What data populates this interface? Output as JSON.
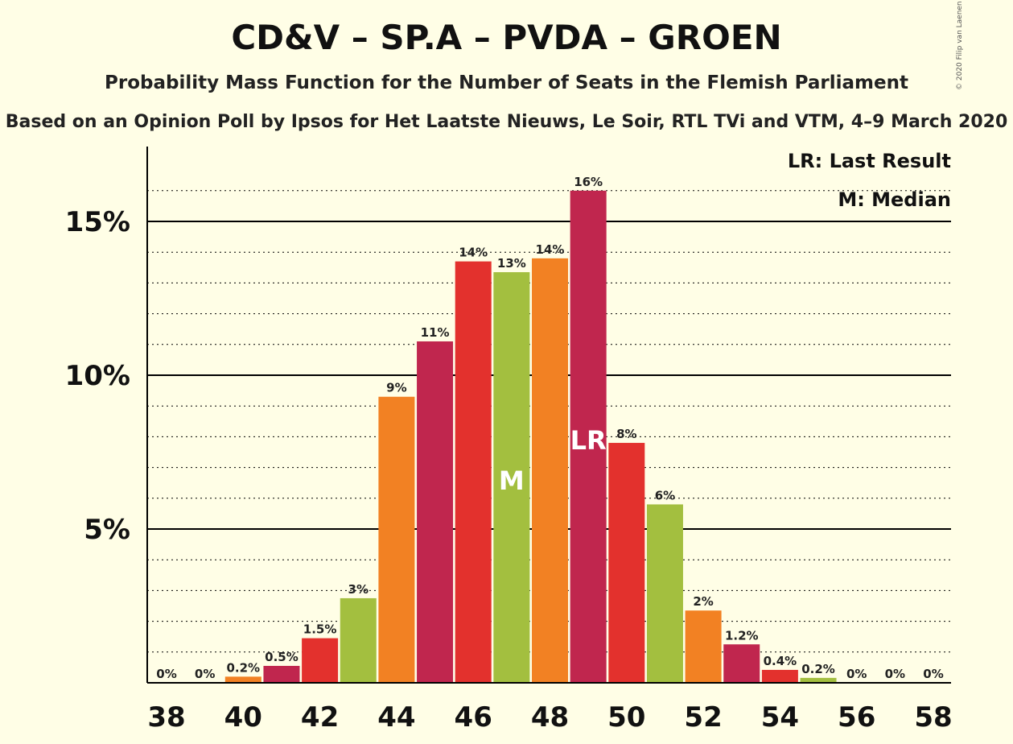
{
  "title": "CD&V – SP.A – PVDA – GROEN",
  "subtitle": "Probability Mass Function for the Number of Seats in the Flemish Parliament",
  "subtitle2": "Based on an Opinion Poll by Ipsos for Het Laatste Nieuws, Le Soir, RTL TVi and VTM, 4–9 March 2020",
  "copyright": "© 2020 Filip van Laenen",
  "legend": {
    "lr": "LR: Last Result",
    "m": "M: Median"
  },
  "colors": {
    "red": "#E3312D",
    "crimson": "#C0264E",
    "green": "#A3BF3F",
    "orange": "#F28123",
    "background": "#FFFEE6"
  },
  "chart_data": {
    "type": "bar",
    "title": "CD&V – SP.A – PVDA – GROEN",
    "xlabel": "",
    "ylabel": "",
    "ylim": [
      0,
      17
    ],
    "y_ticks": [
      {
        "value": 5,
        "label": "5%"
      },
      {
        "value": 10,
        "label": "10%"
      },
      {
        "value": 15,
        "label": "15%"
      }
    ],
    "x_tick_labels": [
      "38",
      "40",
      "42",
      "44",
      "46",
      "48",
      "50",
      "52",
      "54",
      "56",
      "58"
    ],
    "seats": [
      38,
      39,
      40,
      41,
      42,
      43,
      44,
      45,
      46,
      47,
      48,
      49,
      50,
      51,
      52,
      53,
      54,
      55,
      56,
      57,
      58
    ],
    "values": [
      0,
      0,
      0.2,
      0.55,
      1.45,
      2.75,
      9.3,
      11.1,
      13.7,
      13.35,
      13.8,
      16.0,
      7.8,
      5.8,
      2.35,
      1.25,
      0.42,
      0.16,
      0,
      0,
      0
    ],
    "labels": [
      "0%",
      "0%",
      "0.2%",
      "0.5%",
      "1.5%",
      "3%",
      "9%",
      "11%",
      "14%",
      "13%",
      "14%",
      "16%",
      "8%",
      "6%",
      "2%",
      "1.2%",
      "0.4%",
      "0.2%",
      "0%",
      "0%",
      "0%"
    ],
    "bar_colors": [
      "orange",
      "red",
      "orange",
      "crimson",
      "red",
      "green",
      "orange",
      "crimson",
      "red",
      "green",
      "orange",
      "crimson",
      "red",
      "green",
      "orange",
      "crimson",
      "red",
      "green",
      "orange",
      "crimson",
      "red"
    ],
    "median_seat": 47,
    "median_label": "M",
    "last_result_seat": 49,
    "last_result_label": "LR",
    "grid": true
  }
}
